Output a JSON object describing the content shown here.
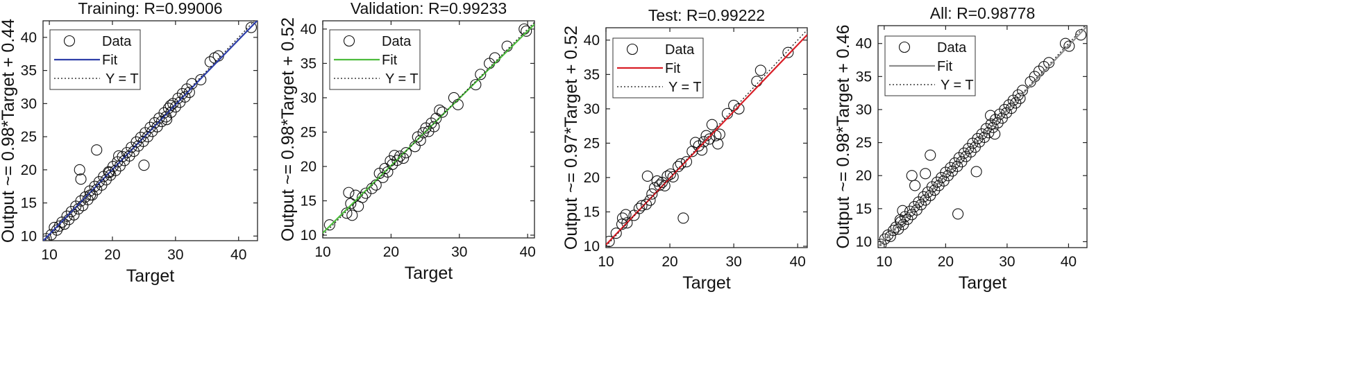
{
  "chart_data": [
    {
      "type": "scatter",
      "title": "Training: R=0.99006",
      "xlabel": "Target",
      "ylabel": "Output ~= 0.98*Target + 0.44",
      "xlim": [
        9,
        43
      ],
      "ylim": [
        9.3,
        42.5
      ],
      "xticks": [
        10,
        20,
        30,
        40
      ],
      "yticks": [
        10,
        15,
        20,
        25,
        30,
        35,
        40
      ],
      "fit": {
        "slope": 0.98,
        "intercept": 0.44,
        "color": "#2d3ea8"
      },
      "legend": {
        "placement": "top-left",
        "entries": [
          "Data",
          "Fit",
          "Y = T"
        ]
      },
      "grid": false,
      "points": [
        [
          9.5,
          9.6
        ],
        [
          10.3,
          10.2
        ],
        [
          10.8,
          11.3
        ],
        [
          11.2,
          10.9
        ],
        [
          11.6,
          11.5
        ],
        [
          12,
          12.1
        ],
        [
          12.4,
          11.8
        ],
        [
          12.8,
          13
        ],
        [
          13.1,
          12.5
        ],
        [
          13.5,
          13.7
        ],
        [
          13.9,
          13.2
        ],
        [
          14.2,
          14.5
        ],
        [
          14.6,
          14.1
        ],
        [
          15,
          15.3
        ],
        [
          15.3,
          14.6
        ],
        [
          15.7,
          15.9
        ],
        [
          16.1,
          15.5
        ],
        [
          16.4,
          16.8
        ],
        [
          16.8,
          16.2
        ],
        [
          17.2,
          17.5
        ],
        [
          17.5,
          17
        ],
        [
          17.9,
          18.2
        ],
        [
          18.3,
          17.7
        ],
        [
          18.6,
          19
        ],
        [
          19,
          18.5
        ],
        [
          19.4,
          19.7
        ],
        [
          19.7,
          19.2
        ],
        [
          20.1,
          20.5
        ],
        [
          20.5,
          19.9
        ],
        [
          20.8,
          21.2
        ],
        [
          21.2,
          20.6
        ],
        [
          21.6,
          22
        ],
        [
          21.9,
          21.4
        ],
        [
          22.3,
          22.6
        ],
        [
          22.7,
          22.1
        ],
        [
          23,
          23.4
        ],
        [
          23.4,
          22.8
        ],
        [
          23.8,
          24.2
        ],
        [
          24.1,
          23.6
        ],
        [
          24.5,
          24.9
        ],
        [
          24.9,
          24.3
        ],
        [
          25.2,
          25.6
        ],
        [
          25.6,
          25
        ],
        [
          26,
          26.4
        ],
        [
          26.3,
          25.8
        ],
        [
          26.7,
          27.1
        ],
        [
          27.1,
          26.5
        ],
        [
          27.4,
          27.8
        ],
        [
          27.8,
          27.3
        ],
        [
          28.2,
          28.6
        ],
        [
          28.5,
          28
        ],
        [
          28.9,
          29.3
        ],
        [
          29.3,
          28.7
        ],
        [
          29.6,
          30
        ],
        [
          30,
          29.5
        ],
        [
          30.4,
          30.8
        ],
        [
          30.7,
          30.2
        ],
        [
          31.1,
          31.5
        ],
        [
          31.5,
          31
        ],
        [
          31.8,
          32.2
        ],
        [
          32.2,
          31.7
        ],
        [
          32.6,
          33
        ],
        [
          34,
          33.6
        ],
        [
          35.5,
          36.3
        ],
        [
          36.2,
          36.9
        ],
        [
          36.8,
          37.2
        ],
        [
          42,
          41.5
        ],
        [
          14.8,
          20
        ],
        [
          15,
          18.6
        ],
        [
          17.5,
          23
        ],
        [
          21,
          22.1
        ],
        [
          25,
          20.7
        ],
        [
          29.2,
          29.7
        ],
        [
          28.6,
          27.6
        ],
        [
          19.5,
          19.6
        ],
        [
          16.5,
          16.2
        ]
      ]
    },
    {
      "type": "scatter",
      "title": "Validation: R=0.99233",
      "xlabel": "Target",
      "ylabel": "Output ~= 0.98*Target + 0.52",
      "xlim": [
        10,
        41
      ],
      "ylim": [
        9.6,
        41.2
      ],
      "xticks": [
        10,
        20,
        30,
        40
      ],
      "yticks": [
        10,
        15,
        20,
        25,
        30,
        35,
        40
      ],
      "fit": {
        "slope": 0.98,
        "intercept": 0.52,
        "color": "#4cbb3c"
      },
      "legend": {
        "placement": "top-left",
        "entries": [
          "Data",
          "Fit",
          "Y = T"
        ]
      },
      "grid": false,
      "points": [
        [
          11,
          11.5
        ],
        [
          13.5,
          13.2
        ],
        [
          13.8,
          16.2
        ],
        [
          14.1,
          14.6
        ],
        [
          14.3,
          12.9
        ],
        [
          14.8,
          15.8
        ],
        [
          15.2,
          14.2
        ],
        [
          15.8,
          15.5
        ],
        [
          16.3,
          16.1
        ],
        [
          17.2,
          16.8
        ],
        [
          17.8,
          17.3
        ],
        [
          18.3,
          19
        ],
        [
          18.8,
          18.4
        ],
        [
          19.1,
          19.7
        ],
        [
          19.5,
          19.2
        ],
        [
          19.9,
          20.8
        ],
        [
          20.2,
          20.3
        ],
        [
          20.5,
          21.6
        ],
        [
          20.9,
          20.9
        ],
        [
          21.3,
          21.5
        ],
        [
          21.8,
          21.2
        ],
        [
          22.2,
          22
        ],
        [
          23.5,
          22.9
        ],
        [
          23.9,
          24.3
        ],
        [
          24.3,
          23.8
        ],
        [
          24.7,
          24.9
        ],
        [
          25.1,
          25.6
        ],
        [
          25.5,
          25.1
        ],
        [
          25.9,
          26.3
        ],
        [
          26.3,
          25.8
        ],
        [
          26.6,
          27
        ],
        [
          27.1,
          28.2
        ],
        [
          27.5,
          27.9
        ],
        [
          29.2,
          30
        ],
        [
          29.8,
          29
        ],
        [
          32.4,
          31.9
        ],
        [
          33.1,
          33.4
        ],
        [
          34.4,
          35
        ],
        [
          35.2,
          35.8
        ],
        [
          37,
          37.5
        ],
        [
          39.5,
          40
        ],
        [
          39.8,
          39.7
        ]
      ]
    },
    {
      "type": "scatter",
      "title": "Test: R=0.99222",
      "xlabel": "Target",
      "ylabel": "Output ~= 0.97*Target + 0.52",
      "xlim": [
        10,
        41.5
      ],
      "ylim": [
        9.8,
        41.8
      ],
      "xticks": [
        10,
        20,
        30,
        40
      ],
      "yticks": [
        10,
        15,
        20,
        25,
        30,
        35,
        40
      ],
      "fit": {
        "slope": 0.97,
        "intercept": 0.52,
        "color": "#d81e26"
      },
      "legend": {
        "placement": "top-left",
        "entries": [
          "Data",
          "Fit",
          "Y = T"
        ]
      },
      "grid": false,
      "points": [
        [
          10.5,
          10.7
        ],
        [
          11.6,
          11.9
        ],
        [
          12.6,
          14.1
        ],
        [
          13.3,
          13.4
        ],
        [
          13.1,
          14.6
        ],
        [
          14.4,
          14.5
        ],
        [
          15.2,
          15.5
        ],
        [
          15.6,
          15.9
        ],
        [
          16.3,
          16.1
        ],
        [
          16.9,
          16.7
        ],
        [
          17.2,
          17.6
        ],
        [
          17.6,
          18.5
        ],
        [
          18,
          19.5
        ],
        [
          18.4,
          18.9
        ],
        [
          18.8,
          19.3
        ],
        [
          19.2,
          18.8
        ],
        [
          19.6,
          20.2
        ],
        [
          20.1,
          20.5
        ],
        [
          20.5,
          20.1
        ],
        [
          21.3,
          21.6
        ],
        [
          21.7,
          22
        ],
        [
          22.1,
          14.1
        ],
        [
          22.6,
          22.3
        ],
        [
          23.5,
          23.8
        ],
        [
          24,
          25.1
        ],
        [
          24.5,
          24.6
        ],
        [
          25,
          24
        ],
        [
          25.3,
          25.2
        ],
        [
          25.7,
          26.1
        ],
        [
          26.2,
          25.6
        ],
        [
          26.6,
          27.7
        ],
        [
          27.2,
          26.1
        ],
        [
          27.5,
          24.9
        ],
        [
          27.8,
          26.3
        ],
        [
          29,
          29.3
        ],
        [
          30,
          30.5
        ],
        [
          30.8,
          30
        ],
        [
          33.6,
          34
        ],
        [
          34.2,
          35.6
        ],
        [
          38.5,
          38.2
        ],
        [
          16.5,
          20.2
        ],
        [
          12.5,
          13.2
        ]
      ]
    },
    {
      "type": "scatter",
      "title": "All: R=0.98778",
      "xlabel": "Target",
      "ylabel": "Output ~= 0.98*Target + 0.46",
      "xlim": [
        9,
        43
      ],
      "ylim": [
        9.1,
        42.7
      ],
      "xticks": [
        10,
        20,
        30,
        40
      ],
      "yticks": [
        10,
        15,
        20,
        25,
        30,
        35,
        40
      ],
      "fit": {
        "slope": 0.98,
        "intercept": 0.46,
        "color": "#8c8c8c"
      },
      "legend": {
        "placement": "top-left",
        "entries": [
          "Data",
          "Fit",
          "Y = T"
        ]
      },
      "grid": false,
      "points": [
        [
          9.5,
          9.6
        ],
        [
          10.1,
          10.4
        ],
        [
          10.6,
          11
        ],
        [
          11,
          10.8
        ],
        [
          11.5,
          11.7
        ],
        [
          11.9,
          12.2
        ],
        [
          12.3,
          11.9
        ],
        [
          12.7,
          13
        ],
        [
          13.1,
          12.6
        ],
        [
          13.4,
          13.8
        ],
        [
          13.8,
          13.4
        ],
        [
          14.2,
          14.6
        ],
        [
          14.5,
          14.1
        ],
        [
          14.9,
          15.3
        ],
        [
          15.3,
          14.8
        ],
        [
          15.6,
          16
        ],
        [
          16,
          15.6
        ],
        [
          16.4,
          16.8
        ],
        [
          16.7,
          16.3
        ],
        [
          17.1,
          17.5
        ],
        [
          17.5,
          17
        ],
        [
          17.8,
          18.3
        ],
        [
          18.2,
          17.8
        ],
        [
          18.6,
          19
        ],
        [
          18.9,
          18.5
        ],
        [
          19.3,
          19.7
        ],
        [
          19.7,
          19.2
        ],
        [
          20,
          20.5
        ],
        [
          20.4,
          20
        ],
        [
          20.8,
          21.2
        ],
        [
          21.1,
          20.7
        ],
        [
          21.5,
          21.9
        ],
        [
          21.9,
          21.4
        ],
        [
          22.2,
          22.7
        ],
        [
          22.6,
          22.1
        ],
        [
          23,
          23.4
        ],
        [
          23.3,
          22.9
        ],
        [
          23.7,
          24.1
        ],
        [
          24.1,
          23.6
        ],
        [
          24.4,
          24.9
        ],
        [
          24.8,
          24.3
        ],
        [
          25.2,
          25.6
        ],
        [
          25.5,
          25.1
        ],
        [
          25.9,
          26.3
        ],
        [
          26.3,
          25.8
        ],
        [
          26.6,
          27.1
        ],
        [
          27,
          26.5
        ],
        [
          27.4,
          27.8
        ],
        [
          27.7,
          27.3
        ],
        [
          28.1,
          28.5
        ],
        [
          28.5,
          28
        ],
        [
          28.8,
          29.3
        ],
        [
          29.2,
          28.7
        ],
        [
          29.6,
          30
        ],
        [
          29.9,
          29.5
        ],
        [
          30.3,
          30.7
        ],
        [
          30.7,
          30.2
        ],
        [
          31,
          31.4
        ],
        [
          31.4,
          31
        ],
        [
          31.8,
          32.2
        ],
        [
          32.1,
          31.7
        ],
        [
          32.5,
          32.9
        ],
        [
          33.8,
          34.2
        ],
        [
          34.5,
          35
        ],
        [
          35.2,
          35.8
        ],
        [
          36,
          36.5
        ],
        [
          36.8,
          37.1
        ],
        [
          39.5,
          40
        ],
        [
          40.1,
          39.6
        ],
        [
          42,
          41.3
        ],
        [
          14.5,
          20
        ],
        [
          15,
          18.5
        ],
        [
          16.7,
          20.3
        ],
        [
          17.5,
          23.1
        ],
        [
          22,
          14.2
        ],
        [
          25,
          20.6
        ],
        [
          28,
          26.3
        ],
        [
          27.3,
          29.1
        ],
        [
          13,
          14.7
        ],
        [
          12.6,
          13.3
        ]
      ]
    }
  ]
}
